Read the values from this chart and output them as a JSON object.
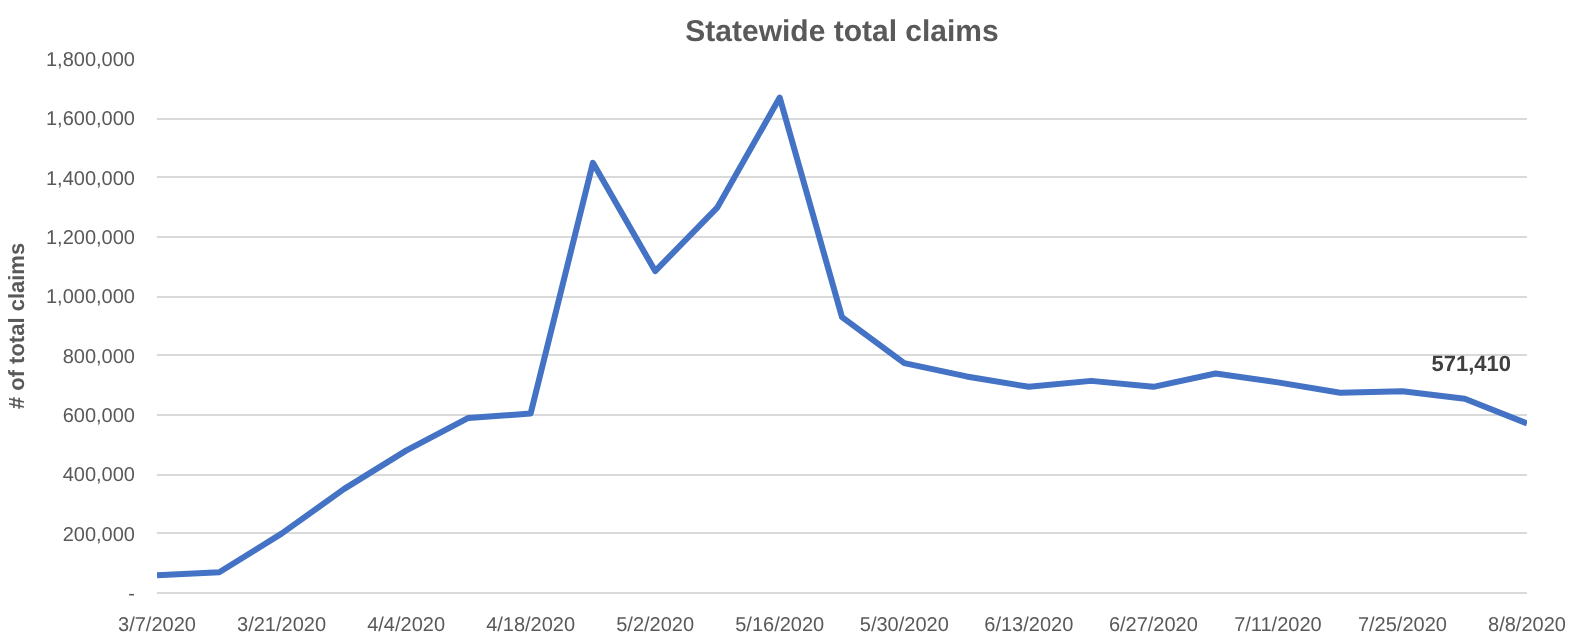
{
  "chart_data": {
    "type": "line",
    "title": "Statewide total claims",
    "ylabel": "# of total claims",
    "x": [
      "2020-03-07",
      "2020-03-14",
      "2020-03-21",
      "2020-03-28",
      "2020-04-04",
      "2020-04-11",
      "2020-04-18",
      "2020-04-25",
      "2020-05-02",
      "2020-05-09",
      "2020-05-16",
      "2020-05-23",
      "2020-05-30",
      "2020-06-06",
      "2020-06-13",
      "2020-06-20",
      "2020-06-27",
      "2020-07-04",
      "2020-07-11",
      "2020-07-18",
      "2020-07-25",
      "2020-08-01",
      "2020-08-08"
    ],
    "series": [
      {
        "color": "#4472c4",
        "values": [
          60000,
          70000,
          200000,
          350000,
          480000,
          590000,
          605000,
          1450000,
          1085000,
          1300000,
          1670000,
          930000,
          775000,
          730000,
          695000,
          715000,
          695000,
          740000,
          710000,
          675000,
          680000,
          655000,
          571410
        ]
      }
    ],
    "annotations": [
      {
        "text": "571,410",
        "x": "2020-08-08",
        "y": 571410
      }
    ],
    "xlim": [
      "2020-03-07",
      "2020-08-08"
    ],
    "xticks": [
      {
        "value": "2020-03-07",
        "label": "3/7/2020"
      },
      {
        "value": "2020-03-21",
        "label": "3/21/2020"
      },
      {
        "value": "2020-04-04",
        "label": "4/4/2020"
      },
      {
        "value": "2020-04-18",
        "label": "4/18/2020"
      },
      {
        "value": "2020-05-02",
        "label": "5/2/2020"
      },
      {
        "value": "2020-05-16",
        "label": "5/16/2020"
      },
      {
        "value": "2020-05-30",
        "label": "5/30/2020"
      },
      {
        "value": "2020-06-13",
        "label": "6/13/2020"
      },
      {
        "value": "2020-06-27",
        "label": "6/27/2020"
      },
      {
        "value": "2020-07-11",
        "label": "7/11/2020"
      },
      {
        "value": "2020-07-25",
        "label": "7/25/2020"
      },
      {
        "value": "2020-08-08",
        "label": "8/8/2020"
      }
    ],
    "ylim": [
      0,
      1800000
    ],
    "yticks": [
      {
        "value": 0,
        "label": "-"
      },
      {
        "value": 200000,
        "label": "200,000"
      },
      {
        "value": 400000,
        "label": "400,000"
      },
      {
        "value": 600000,
        "label": "600,000"
      },
      {
        "value": 800000,
        "label": "800,000"
      },
      {
        "value": 1000000,
        "label": "1,000,000"
      },
      {
        "value": 1200000,
        "label": "1,200,000"
      },
      {
        "value": 1400000,
        "label": "1,400,000"
      },
      {
        "value": 1600000,
        "label": "1,600,000"
      },
      {
        "value": 1800000,
        "label": "1,800,000"
      }
    ],
    "grid": "y",
    "marker": "none",
    "line_style": "solid"
  }
}
